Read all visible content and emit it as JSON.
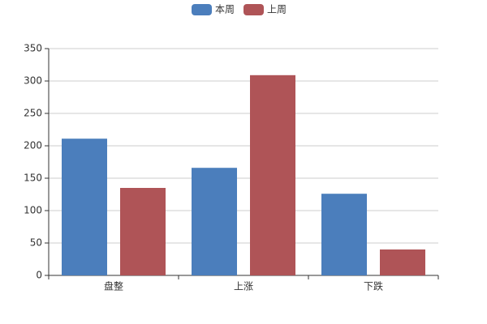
{
  "chart_data": {
    "type": "bar",
    "categories": [
      "盘整",
      "上涨",
      "下跌"
    ],
    "series": [
      {
        "name": "本周",
        "color": "#4b7ebc",
        "values": [
          211,
          166,
          126
        ]
      },
      {
        "name": "上周",
        "color": "#af5457",
        "values": [
          135,
          309,
          40
        ]
      }
    ],
    "ylim": [
      0,
      350
    ],
    "yticks": [
      0,
      50,
      100,
      150,
      200,
      250,
      300,
      350
    ],
    "grid": true,
    "legend": "top"
  }
}
